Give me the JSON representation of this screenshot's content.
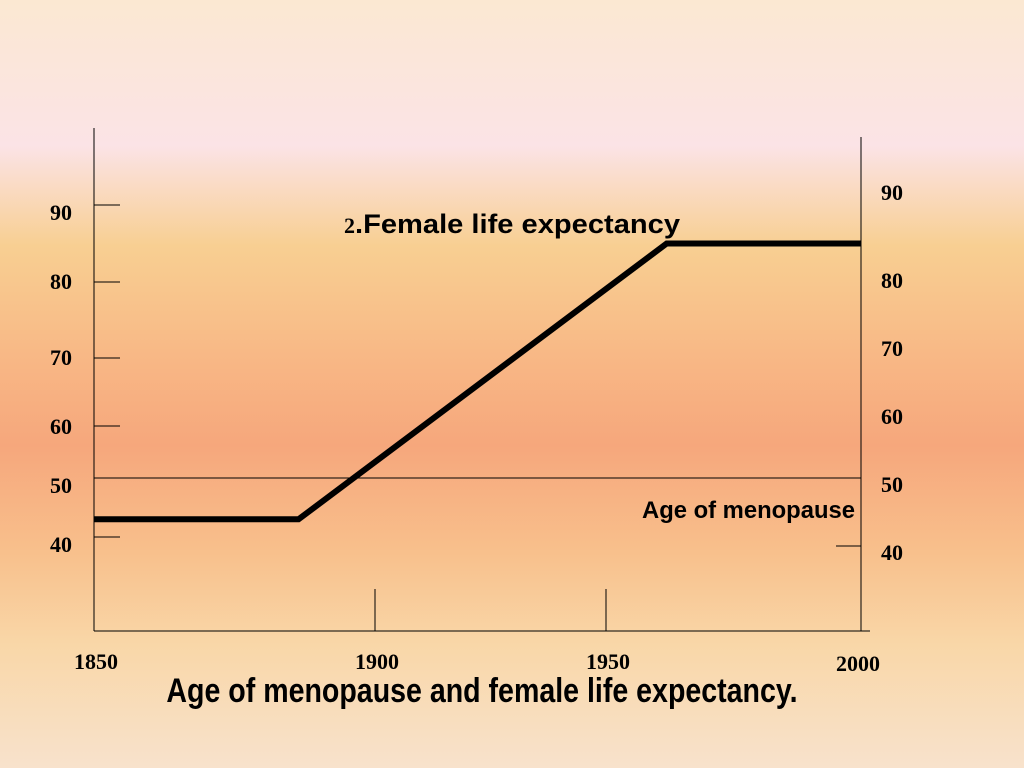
{
  "slide": {
    "title": "Age of menopause and female life expectancy."
  },
  "chart_data": {
    "type": "line",
    "title": "Age of menopause and female life expectancy.",
    "xlabel": "",
    "ylabel": "",
    "xlim": [
      1850,
      2000
    ],
    "ylim": [
      30,
      100
    ],
    "x_ticks": [
      "1850",
      "1900",
      "1950",
      "2000"
    ],
    "y_ticks_left": [
      "90",
      "80",
      "70",
      "60",
      "50",
      "40"
    ],
    "y_ticks_right": [
      "90",
      "80",
      "70",
      "60",
      "50",
      "40"
    ],
    "grid": false,
    "series": [
      {
        "name": "2.Female life expectancy",
        "name_prefix": "2",
        "name_text": ".Female life expectancy",
        "color": "#000000",
        "points": [
          [
            1850,
            43
          ],
          [
            1890,
            43
          ],
          [
            1962,
            85
          ],
          [
            2000,
            85
          ]
        ]
      },
      {
        "name": "Age of menopause",
        "color": "#000000",
        "points": [
          [
            1850,
            50
          ],
          [
            2000,
            50
          ]
        ]
      }
    ]
  }
}
